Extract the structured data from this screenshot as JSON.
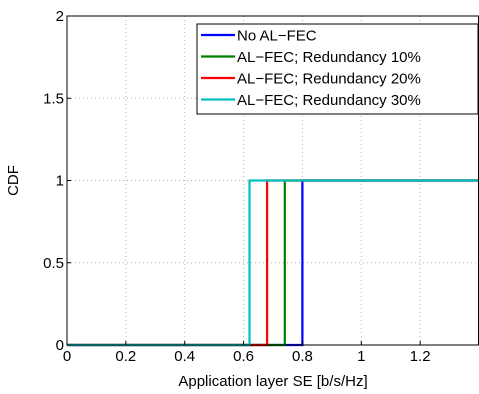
{
  "chart_data": {
    "type": "line",
    "title": "",
    "xlabel": "Application layer SE [b/s/Hz]",
    "ylabel": "CDF",
    "xlim": [
      0,
      1.4
    ],
    "ylim": [
      0,
      2
    ],
    "xticks": [
      0,
      0.2,
      0.4,
      0.6,
      0.8,
      1,
      1.2
    ],
    "xtick_labels": [
      "0",
      "0.2",
      "0.4",
      "0.6",
      "0.8",
      "1",
      "1.2"
    ],
    "yticks": [
      0,
      0.5,
      1,
      1.5,
      2
    ],
    "ytick_labels": [
      "0",
      "0.5",
      "1",
      "1.5",
      "2"
    ],
    "grid": true,
    "legend_position": "top-right",
    "series": [
      {
        "name": "No AL−FEC",
        "color": "#0000ff",
        "x": [
          0,
          0.8,
          0.8,
          1.4
        ],
        "y": [
          0,
          0,
          1,
          1
        ]
      },
      {
        "name": "AL−FEC; Redundancy 10%",
        "color": "#008000",
        "x": [
          0,
          0.74,
          0.74,
          1.4
        ],
        "y": [
          0,
          0,
          1,
          1
        ]
      },
      {
        "name": "AL−FEC; Redundancy 20%",
        "color": "#ff0000",
        "x": [
          0,
          0.68,
          0.68,
          1.4
        ],
        "y": [
          0,
          0,
          1,
          1
        ]
      },
      {
        "name": "AL−FEC; Redundancy 30%",
        "color": "#00bfbf",
        "x": [
          0,
          0.62,
          0.62,
          1.4
        ],
        "y": [
          0,
          0,
          1,
          1
        ]
      }
    ]
  }
}
